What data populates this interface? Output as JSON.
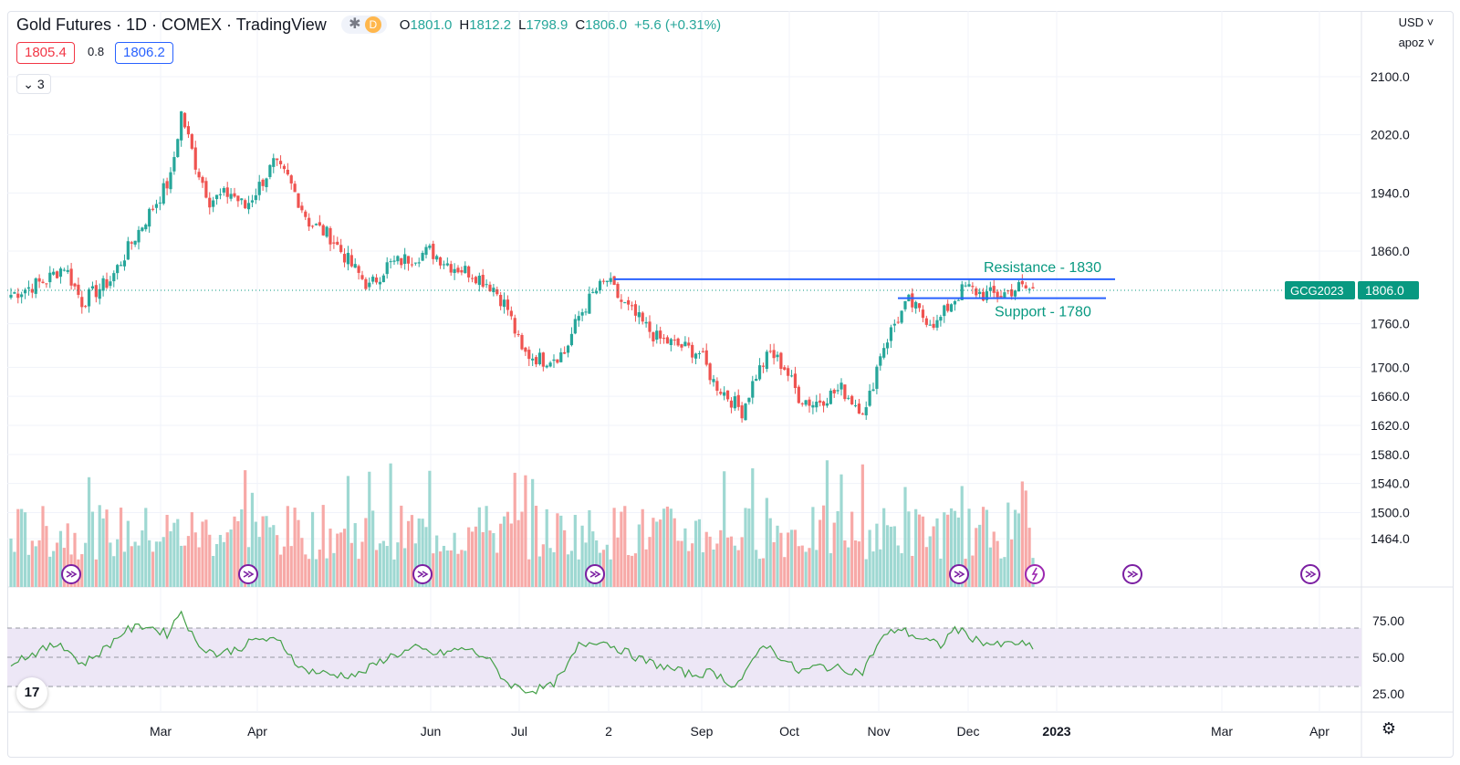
{
  "header": {
    "symbol_title": "Gold Futures · 1D · COMEX · TradingView",
    "badge_star": "✱",
    "badge_d": "D",
    "ohlc": {
      "o_label": "O",
      "o": "1801.0",
      "h_label": "H",
      "h": "1812.2",
      "l_label": "L",
      "l": "1798.9",
      "c_label": "C",
      "c": "1806.0",
      "change": "+5.6 (+0.31%)"
    },
    "bid": "1805.4",
    "spread": "0.8",
    "ask": "1806.2",
    "collapse_count": "3",
    "currency": "USD",
    "user": "apoz"
  },
  "icons": {
    "collapse": "chevron-down-icon",
    "settings": "gear-icon",
    "logo": "tradingview-logo",
    "event": "dividend-arrow-icon"
  },
  "logo_text": "17",
  "gear_glyph": "⚙",
  "colors": {
    "up": "#26a69a",
    "down": "#ef5350",
    "line": "#2962ff",
    "rsi": "#43a047",
    "rsi_band": "#ede7f6",
    "badge": "#089981"
  },
  "chart_data": {
    "type": "candlestick",
    "price_axis_ticks": [
      "2100.0",
      "2020.0",
      "1940.0",
      "1860.0",
      "1760.0",
      "1700.0",
      "1660.0",
      "1620.0",
      "1580.0",
      "1540.0",
      "1500.0",
      "1464.0"
    ],
    "x_axis_ticks": [
      "Mar",
      "Apr",
      "Jun",
      "Jul",
      "2",
      "Sep",
      "Oct",
      "Nov",
      "Dec",
      "2023",
      "Mar",
      "Apr"
    ],
    "close_series_keypoints": [
      [
        0,
        1800
      ],
      [
        10,
        1820
      ],
      [
        15,
        1840
      ],
      [
        20,
        1790
      ],
      [
        28,
        1820
      ],
      [
        35,
        1880
      ],
      [
        40,
        1920
      ],
      [
        45,
        1960
      ],
      [
        48,
        2050
      ],
      [
        52,
        1980
      ],
      [
        56,
        1930
      ],
      [
        62,
        1940
      ],
      [
        66,
        1920
      ],
      [
        70,
        1950
      ],
      [
        74,
        1980
      ],
      [
        78,
        1960
      ],
      [
        84,
        1900
      ],
      [
        90,
        1880
      ],
      [
        96,
        1840
      ],
      [
        101,
        1810
      ],
      [
        106,
        1840
      ],
      [
        112,
        1850
      ],
      [
        118,
        1860
      ],
      [
        124,
        1840
      ],
      [
        130,
        1830
      ],
      [
        136,
        1810
      ],
      [
        140,
        1780
      ],
      [
        144,
        1720
      ],
      [
        150,
        1710
      ],
      [
        156,
        1720
      ],
      [
        160,
        1770
      ],
      [
        164,
        1800
      ],
      [
        168,
        1820
      ],
      [
        172,
        1790
      ],
      [
        176,
        1770
      ],
      [
        182,
        1740
      ],
      [
        188,
        1730
      ],
      [
        194,
        1720
      ],
      [
        198,
        1680
      ],
      [
        202,
        1660
      ],
      [
        206,
        1640
      ],
      [
        210,
        1690
      ],
      [
        214,
        1720
      ],
      [
        218,
        1700
      ],
      [
        222,
        1660
      ],
      [
        226,
        1650
      ],
      [
        230,
        1660
      ],
      [
        234,
        1670
      ],
      [
        238,
        1650
      ],
      [
        241,
        1640
      ],
      [
        245,
        1720
      ],
      [
        249,
        1760
      ],
      [
        253,
        1790
      ],
      [
        257,
        1770
      ],
      [
        261,
        1760
      ],
      [
        265,
        1790
      ],
      [
        269,
        1810
      ],
      [
        274,
        1800
      ],
      [
        279,
        1800
      ],
      [
        284,
        1810
      ],
      [
        288,
        1806
      ]
    ],
    "current_price": "1806.0",
    "current_symbol": "GCG2023",
    "resistance": {
      "label": "Resistance - 1830",
      "value": 1830
    },
    "support": {
      "label": "Support - 1780",
      "value": 1780
    },
    "volume_pane": {
      "present": true
    },
    "rsi": {
      "ticks": [
        "75.00",
        "50.00",
        "25.00"
      ],
      "upper": 70,
      "middle": 50,
      "lower": 30,
      "keypoints": [
        [
          0,
          47
        ],
        [
          8,
          54
        ],
        [
          14,
          60
        ],
        [
          20,
          45
        ],
        [
          26,
          55
        ],
        [
          32,
          68
        ],
        [
          38,
          72
        ],
        [
          44,
          66
        ],
        [
          48,
          82
        ],
        [
          52,
          60
        ],
        [
          58,
          52
        ],
        [
          64,
          56
        ],
        [
          70,
          63
        ],
        [
          76,
          60
        ],
        [
          82,
          42
        ],
        [
          90,
          38
        ],
        [
          98,
          38
        ],
        [
          106,
          50
        ],
        [
          114,
          56
        ],
        [
          120,
          52
        ],
        [
          128,
          56
        ],
        [
          134,
          50
        ],
        [
          140,
          32
        ],
        [
          146,
          27
        ],
        [
          152,
          30
        ],
        [
          156,
          40
        ],
        [
          160,
          58
        ],
        [
          166,
          62
        ],
        [
          172,
          55
        ],
        [
          178,
          48
        ],
        [
          186,
          42
        ],
        [
          192,
          38
        ],
        [
          198,
          40
        ],
        [
          204,
          30
        ],
        [
          208,
          42
        ],
        [
          212,
          60
        ],
        [
          216,
          52
        ],
        [
          222,
          40
        ],
        [
          228,
          44
        ],
        [
          234,
          42
        ],
        [
          240,
          40
        ],
        [
          245,
          62
        ],
        [
          250,
          70
        ],
        [
          256,
          63
        ],
        [
          262,
          58
        ],
        [
          266,
          70
        ],
        [
          272,
          62
        ],
        [
          278,
          58
        ],
        [
          284,
          60
        ],
        [
          288,
          56
        ]
      ]
    }
  }
}
